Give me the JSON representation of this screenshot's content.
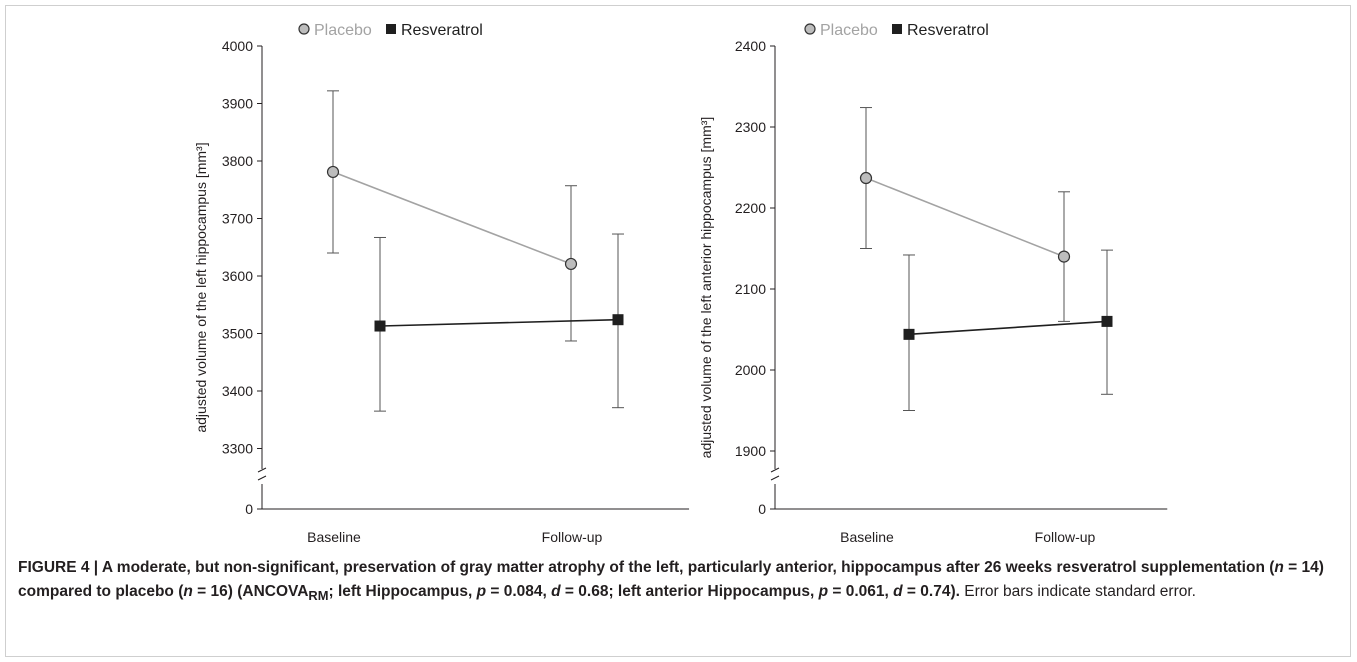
{
  "colors": {
    "placebo": "#a3a3a3",
    "placebo_marker": "#bdbdbd",
    "resveratrol": "#1f1f1f",
    "axis": "#231f20"
  },
  "chart_data": [
    {
      "type": "line",
      "ylabel": "adjusted volume of the left hippocampus [mm³]",
      "categories": [
        "Baseline",
        "Follow-up"
      ],
      "ylim_broken": [
        3250,
        4000
      ],
      "yticks": [
        "4000",
        "3900",
        "3800",
        "3700",
        "3600",
        "3500",
        "3400",
        "3300",
        "0"
      ],
      "legend": [
        "Placebo",
        "Resveratrol"
      ],
      "series": [
        {
          "name": "Placebo",
          "marker": "circle",
          "values": [
            3781,
            3621
          ],
          "errors": [
            [
              3640,
              3922
            ],
            [
              3487,
              3757
            ]
          ]
        },
        {
          "name": "Resveratrol",
          "marker": "square",
          "values": [
            3513,
            3524
          ],
          "errors": [
            [
              3365,
              3667
            ],
            [
              3371,
              3673
            ]
          ]
        }
      ]
    },
    {
      "type": "line",
      "ylabel": "adjusted volume of the left anterior hippocampus [mm³]",
      "categories": [
        "Baseline",
        "Follow-up"
      ],
      "ylim_broken": [
        1850,
        2400
      ],
      "yticks": [
        "2400",
        "2300",
        "2200",
        "2100",
        "2000",
        "1900",
        "0"
      ],
      "legend": [
        "Placebo",
        "Resveratrol"
      ],
      "series": [
        {
          "name": "Placebo",
          "marker": "circle",
          "values": [
            2237,
            2140
          ],
          "errors": [
            [
              2150,
              2324
            ],
            [
              2060,
              2220
            ]
          ]
        },
        {
          "name": "Resveratrol",
          "marker": "square",
          "values": [
            2044,
            2060
          ],
          "errors": [
            [
              1950,
              2142
            ],
            [
              1970,
              2148
            ]
          ]
        }
      ]
    }
  ],
  "caption": {
    "label": "FIGURE 4 | ",
    "part1": "A moderate, but non-significant, preservation of gray matter atrophy of the left, particularly anterior, hippocampus after 26 weeks resveratrol supplementation (",
    "n": "n",
    "eq14": " = 14) compared to placebo (",
    "eq16": " = 16) (ANCOVA",
    "sub": "RM",
    "part2": "; left Hippocampus, ",
    "p": "p",
    "p1val": " = 0.084, ",
    "d": "d",
    "d1val": " = 0.68; left anterior Hippocampus, ",
    "p2val": " = 0.061, ",
    "d2val": " = 0.74).",
    "rest": " Error bars indicate standard error."
  }
}
